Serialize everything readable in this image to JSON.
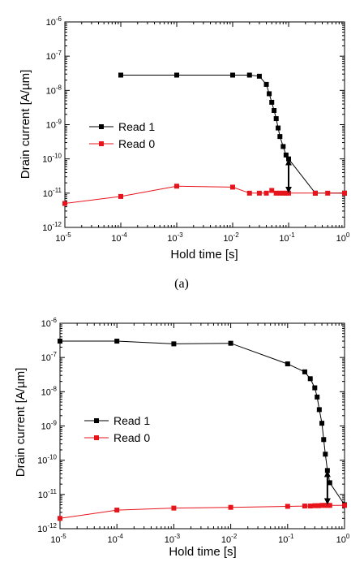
{
  "chart_data": [
    {
      "type": "line",
      "caption": "(a)",
      "xlabel": "Hold time [s]",
      "ylabel": "Drain current [A/µm]",
      "xscale": "log",
      "yscale": "log",
      "xlim": [
        1e-05,
        1
      ],
      "ylim": [
        1e-12,
        1e-06
      ],
      "legend_position": "center-left",
      "series": [
        {
          "name": "Read 1",
          "color": "#000000",
          "marker": "square",
          "x": [
            0.0001,
            0.001,
            0.01,
            0.02,
            0.03,
            0.04,
            0.045,
            0.05,
            0.055,
            0.06,
            0.065,
            0.07,
            0.08,
            0.09,
            0.1,
            0.3,
            1
          ],
          "y": [
            2.8e-08,
            2.8e-08,
            2.8e-08,
            2.8e-08,
            2.6e-08,
            1.5e-08,
            8e-09,
            4.5e-09,
            2.6e-09,
            1.5e-09,
            8e-10,
            4.5e-10,
            2.3e-10,
            1.3e-10,
            1e-10,
            1e-11,
            1e-11
          ]
        },
        {
          "name": "Read 0",
          "color": "#e8141c",
          "marker": "square",
          "x": [
            1e-05,
            0.0001,
            0.001,
            0.01,
            0.02,
            0.03,
            0.04,
            0.05,
            0.06,
            0.07,
            0.08,
            0.09,
            0.1,
            0.3,
            0.5,
            1
          ],
          "y": [
            5e-12,
            8e-12,
            1.6e-11,
            1.5e-11,
            1e-11,
            1e-11,
            1e-11,
            1.2e-11,
            1e-11,
            1e-11,
            1e-11,
            1e-11,
            1e-11,
            1e-11,
            1e-11,
            1e-11
          ]
        }
      ],
      "arrow": {
        "x": 0.1,
        "y_from": 1e-10,
        "y_to": 1e-11
      }
    },
    {
      "type": "line",
      "caption": "",
      "xlabel": "Hold time [s]",
      "ylabel": "Drain current [A/µm]",
      "xscale": "log",
      "yscale": "log",
      "xlim": [
        1e-05,
        1
      ],
      "ylim": [
        1e-12,
        1e-06
      ],
      "legend_position": "center-left",
      "series": [
        {
          "name": "Read 1",
          "color": "#000000",
          "marker": "square",
          "x": [
            1e-05,
            0.0001,
            0.001,
            0.01,
            0.1,
            0.2,
            0.25,
            0.3,
            0.33,
            0.36,
            0.4,
            0.43,
            0.46,
            0.5,
            0.55,
            1
          ],
          "y": [
            3e-07,
            3e-07,
            2.5e-07,
            2.6e-07,
            6.5e-08,
            3.8e-08,
            2.4e-08,
            1.3e-08,
            7e-09,
            3e-09,
            1.2e-09,
            4e-10,
            1.5e-10,
            5e-11,
            2.2e-11,
            5e-12
          ]
        },
        {
          "name": "Read 0",
          "color": "#e8141c",
          "marker": "square",
          "x": [
            1e-05,
            0.0001,
            0.001,
            0.01,
            0.1,
            0.2,
            0.25,
            0.3,
            0.35,
            0.4,
            0.45,
            0.5,
            0.55,
            1
          ],
          "y": [
            2e-12,
            3.5e-12,
            4e-12,
            4.2e-12,
            4.5e-12,
            4.6e-12,
            4.6e-12,
            4.7e-12,
            4.7e-12,
            4.8e-12,
            4.8e-12,
            4.8e-12,
            4.8e-12,
            4.8e-12
          ]
        }
      ],
      "arrow": {
        "x": 0.5,
        "y_from": 5e-11,
        "y_to": 5e-12
      }
    }
  ],
  "tick_labels": {
    "x": [
      {
        "base": "10",
        "exp": "-5"
      },
      {
        "base": "10",
        "exp": "-4"
      },
      {
        "base": "10",
        "exp": "-3"
      },
      {
        "base": "10",
        "exp": "-2"
      },
      {
        "base": "10",
        "exp": "-1"
      },
      {
        "base": "10",
        "exp": "0"
      }
    ],
    "y": [
      {
        "base": "10",
        "exp": "-12"
      },
      {
        "base": "10",
        "exp": "-11"
      },
      {
        "base": "10",
        "exp": "-10"
      },
      {
        "base": "10",
        "exp": "-9"
      },
      {
        "base": "10",
        "exp": "-8"
      },
      {
        "base": "10",
        "exp": "-7"
      },
      {
        "base": "10",
        "exp": "-6"
      }
    ]
  }
}
